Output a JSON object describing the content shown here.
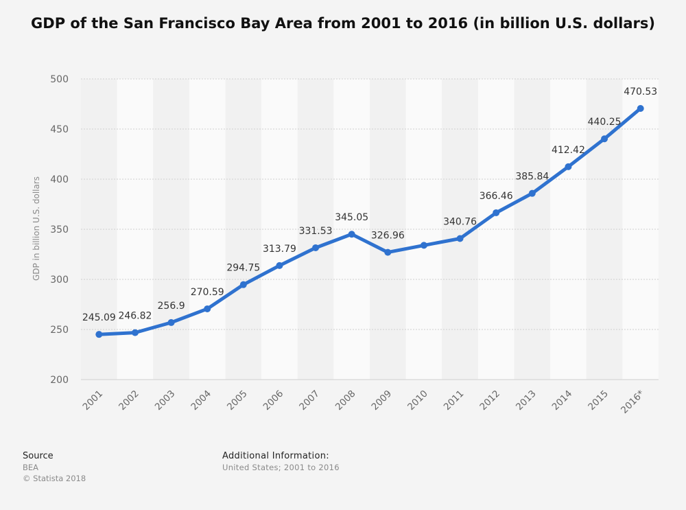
{
  "chart_data": {
    "type": "line",
    "title": "GDP of the San Francisco Bay Area from 2001 to 2016 (in billion U.S. dollars)",
    "xlabel": "",
    "ylabel": "GDP in billion U.S. dollars",
    "categories": [
      "2001",
      "2002",
      "2003",
      "2004",
      "2005",
      "2006",
      "2007",
      "2008",
      "2009",
      "2010",
      "2011",
      "2012",
      "2013",
      "2014",
      "2015",
      "2016*"
    ],
    "values": [
      245.09,
      246.82,
      256.9,
      270.59,
      294.75,
      313.79,
      331.53,
      345.05,
      326.96,
      334,
      340.76,
      366.46,
      385.84,
      412.42,
      440.25,
      470.53
    ],
    "data_labels": [
      "245.09",
      "246.82",
      "256.9",
      "270.59",
      "294.75",
      "313.79",
      "331.53",
      "345.05",
      "326.96",
      "",
      "340.76",
      "366.46",
      "385.84",
      "412.42",
      "440.25",
      "470.53"
    ],
    "ylim": [
      200,
      500
    ],
    "yticks": [
      200,
      250,
      300,
      350,
      400,
      450,
      500
    ],
    "grid": true,
    "legend": "none",
    "line_color": "#2f72cf"
  },
  "footer": {
    "source_heading": "Source",
    "source_text": "BEA",
    "copyright": "© Statista 2018",
    "info_heading": "Additional Information:",
    "info_text": "United States; 2001 to 2016"
  }
}
